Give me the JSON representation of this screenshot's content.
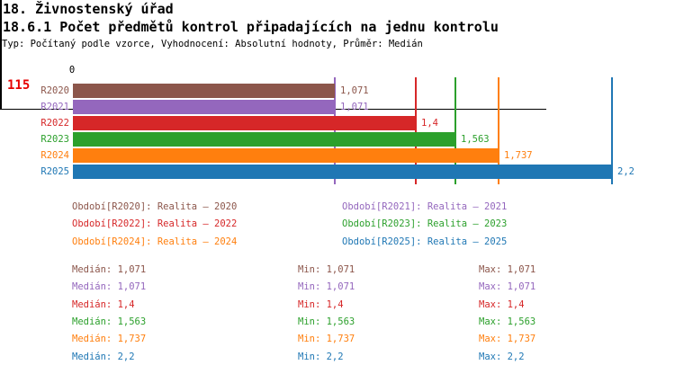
{
  "header": {
    "title": "18. Živnostenský úřad",
    "subtitle": "18.6.1 Počet předmětů kontrol připadajících na jednu kontrolu",
    "meta": "Typ: Počítaný podle vzorce, Vyhodnocení: Absolutní hodnoty, Průměr: Medián"
  },
  "row_header": {
    "value": "115",
    "color": "#e60000"
  },
  "chart_data": {
    "type": "bar",
    "orientation": "horizontal",
    "title": "18.6.1 Počet předmětů kontrol připadajících na jednu kontrolu",
    "origin_tick_label": "0",
    "xlim": [
      0,
      2.23
    ],
    "grid": "value-marker-lines-per-series",
    "legend_position": "below",
    "categories": [
      "R2020",
      "R2021",
      "R2022",
      "R2023",
      "R2024",
      "R2025"
    ],
    "values": [
      1.071,
      1.071,
      1.4,
      1.563,
      1.737,
      2.2
    ],
    "value_labels": [
      "1,071",
      "1,071",
      "1,4",
      "1,563",
      "1,737",
      "2,2"
    ],
    "series_names": [
      "Realita – 2020",
      "Realita – 2021",
      "Realita – 2022",
      "Realita – 2023",
      "Realita – 2024",
      "Realita – 2025"
    ],
    "colors": [
      "#8c564b",
      "#9467bd",
      "#d62728",
      "#2ca02c",
      "#ff7f0e",
      "#1f77b4"
    ]
  },
  "legend": {
    "items": [
      {
        "label": "Období[R2020]: Realita – 2020",
        "color": "#8c564b"
      },
      {
        "label": "Období[R2021]: Realita – 2021",
        "color": "#9467bd"
      },
      {
        "label": "Období[R2022]: Realita – 2022",
        "color": "#d62728"
      },
      {
        "label": "Období[R2023]: Realita – 2023",
        "color": "#2ca02c"
      },
      {
        "label": "Období[R2024]: Realita – 2024",
        "color": "#ff7f0e"
      },
      {
        "label": "Období[R2025]: Realita – 2025",
        "color": "#1f77b4"
      }
    ]
  },
  "stats": {
    "rows": [
      {
        "color": "#8c564b",
        "median": "Medián: 1,071",
        "min": "Min: 1,071",
        "max": "Max: 1,071"
      },
      {
        "color": "#9467bd",
        "median": "Medián: 1,071",
        "min": "Min: 1,071",
        "max": "Max: 1,071"
      },
      {
        "color": "#d62728",
        "median": "Medián: 1,4",
        "min": "Min: 1,4",
        "max": "Max: 1,4"
      },
      {
        "color": "#2ca02c",
        "median": "Medián: 1,563",
        "min": "Min: 1,563",
        "max": "Max: 1,563"
      },
      {
        "color": "#ff7f0e",
        "median": "Medián: 1,737",
        "min": "Min: 1,737",
        "max": "Max: 1,737"
      },
      {
        "color": "#1f77b4",
        "median": "Medián: 2,2",
        "min": "Min: 2,2",
        "max": "Max: 2,2"
      }
    ]
  }
}
